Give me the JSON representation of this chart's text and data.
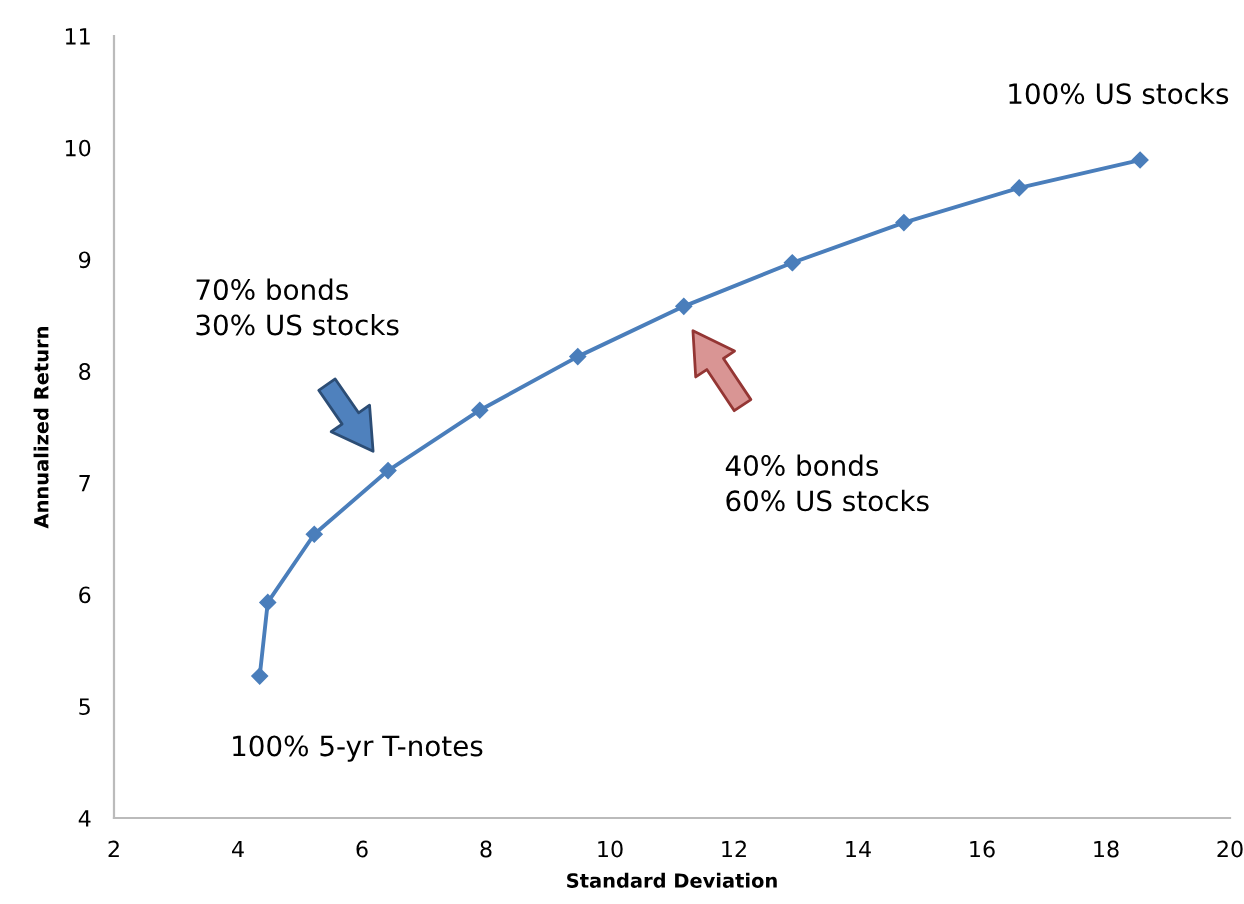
{
  "chart_data": {
    "type": "line",
    "xlabel": "Standard Deviation",
    "ylabel": "Annualized Return",
    "x": [
      4.35,
      4.48,
      5.23,
      6.42,
      7.9,
      9.48,
      11.19,
      12.94,
      14.74,
      16.6,
      18.55
    ],
    "series": [
      {
        "color": "#4a7ebb",
        "values": [
          5.27,
          5.93,
          6.54,
          7.11,
          7.65,
          8.13,
          8.58,
          8.97,
          9.33,
          9.64,
          9.89
        ]
      }
    ],
    "xlim": [
      2,
      20
    ],
    "xticks": [
      2,
      4,
      6,
      8,
      10,
      12,
      14,
      16,
      18,
      20
    ],
    "ylim": [
      4,
      11
    ],
    "yticks": [
      4,
      5,
      6,
      7,
      8,
      9,
      10,
      11
    ],
    "marker": "diamond",
    "line_style": "solid",
    "grid": false,
    "legend": false,
    "annotations": [
      "70% bonds\n30% US stocks",
      "40% bonds\n60% US stocks",
      {
        "text": "100% US stocks",
        "x": 18.55,
        "y": 9.89
      },
      {
        "text": "100% 5-yr T-notes",
        "x": 4.35,
        "y": 5.27
      }
    ]
  }
}
